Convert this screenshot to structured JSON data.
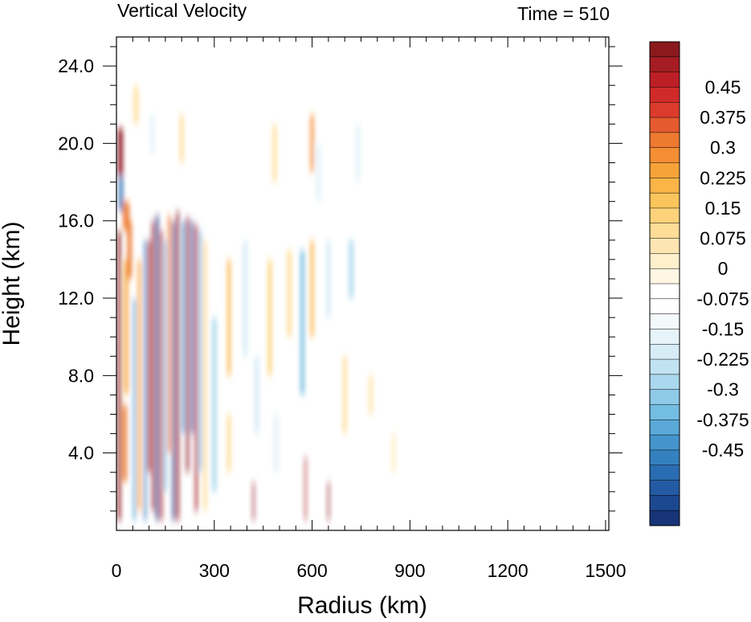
{
  "chart_data": {
    "type": "heatmap",
    "title": "Vertical Velocity",
    "time_label": "Time = 510",
    "xlabel": "Radius (km)",
    "ylabel": "Height (km)",
    "xlim": [
      0,
      1510
    ],
    "ylim": [
      0,
      25.5
    ],
    "x_ticks": [
      0,
      300,
      600,
      900,
      1200,
      1500
    ],
    "x_tick_labels": [
      "0",
      "300",
      "600",
      "900",
      "1200",
      "1500"
    ],
    "y_ticks": [
      4,
      8,
      12,
      16,
      20,
      24
    ],
    "y_tick_labels": [
      "4.0",
      "8.0",
      "12.0",
      "16.0",
      "20.0",
      "24.0"
    ],
    "colorbar": {
      "labels": [
        "0.45",
        "0.375",
        "0.3",
        "0.225",
        "0.15",
        "0.075",
        "0",
        "-0.075",
        "-0.15",
        "-0.225",
        "-0.3",
        "-0.375",
        "-0.45"
      ],
      "colors": [
        "#8b1a1e",
        "#a51c22",
        "#bd1f26",
        "#d02a2a",
        "#dc3b2c",
        "#e55a2e",
        "#ee7a30",
        "#f48e34",
        "#f8a33a",
        "#fab447",
        "#fcc55c",
        "#fdd27a",
        "#fedd98",
        "#fee6b2",
        "#fff0cc",
        "#fff7e4",
        "#ffffff",
        "#ffffff",
        "#f4f9fc",
        "#e6f3f9",
        "#d6ecf6",
        "#c2e3f2",
        "#aad8ee",
        "#8fcbe8",
        "#74bde2",
        "#5ba9d8",
        "#4595cc",
        "#3581bf",
        "#2b6db2",
        "#235aa3",
        "#1c4890",
        "#173478"
      ],
      "min": -0.5,
      "max": 0.5
    },
    "features": [
      {
        "x": 8,
        "y0": 0.5,
        "y1": 15.5,
        "value": 0.55,
        "width": 10
      },
      {
        "x": 25,
        "y0": 2.5,
        "y1": 6.5,
        "value": 0.3,
        "width": 14
      },
      {
        "x": 30,
        "y0": 7,
        "y1": 14,
        "value": 0.25,
        "width": 12
      },
      {
        "x": 40,
        "y0": 13,
        "y1": 16,
        "value": 0.3,
        "width": 14
      },
      {
        "x": 12,
        "y0": 18.3,
        "y1": 20.8,
        "value": 0.55,
        "width": 16
      },
      {
        "x": 14,
        "y0": 16.5,
        "y1": 18.3,
        "value": -0.4,
        "width": 12
      },
      {
        "x": 30,
        "y0": 15.5,
        "y1": 17,
        "value": 0.3,
        "width": 20
      },
      {
        "x": 55,
        "y0": 0.5,
        "y1": 12,
        "value": -0.3,
        "width": 8
      },
      {
        "x": 70,
        "y0": 1,
        "y1": 14,
        "value": 0.25,
        "width": 9
      },
      {
        "x": 88,
        "y0": 0.5,
        "y1": 15,
        "value": -0.35,
        "width": 7
      },
      {
        "x": 100,
        "y0": 3,
        "y1": 15,
        "value": 0.45,
        "width": 8
      },
      {
        "x": 112,
        "y0": 1,
        "y1": 16,
        "value": 0.5,
        "width": 7
      },
      {
        "x": 125,
        "y0": 0.5,
        "y1": 16.3,
        "value": -0.55,
        "width": 8
      },
      {
        "x": 138,
        "y0": 0.5,
        "y1": 15.5,
        "value": 0.45,
        "width": 7
      },
      {
        "x": 150,
        "y0": 2,
        "y1": 15,
        "value": -0.3,
        "width": 6
      },
      {
        "x": 162,
        "y0": 4,
        "y1": 16.3,
        "value": 0.3,
        "width": 8
      },
      {
        "x": 175,
        "y0": 0.5,
        "y1": 16,
        "value": -0.5,
        "width": 7
      },
      {
        "x": 188,
        "y0": 0.5,
        "y1": 16.5,
        "value": 0.55,
        "width": 8
      },
      {
        "x": 205,
        "y0": 5,
        "y1": 16,
        "value": -0.35,
        "width": 7
      },
      {
        "x": 218,
        "y0": 3,
        "y1": 16.2,
        "value": 0.5,
        "width": 8
      },
      {
        "x": 232,
        "y0": 5,
        "y1": 16,
        "value": -0.45,
        "width": 7
      },
      {
        "x": 245,
        "y0": 1,
        "y1": 15.8,
        "value": 0.45,
        "width": 8
      },
      {
        "x": 258,
        "y0": 3,
        "y1": 15.5,
        "value": -0.3,
        "width": 6
      },
      {
        "x": 272,
        "y0": 1,
        "y1": 15,
        "value": 0.15,
        "width": 8
      },
      {
        "x": 200,
        "y0": 19,
        "y1": 21.5,
        "value": 0.12,
        "width": 12
      },
      {
        "x": 110,
        "y0": 19.5,
        "y1": 21.5,
        "value": -0.1,
        "width": 14
      },
      {
        "x": 60,
        "y0": 21,
        "y1": 23,
        "value": 0.1,
        "width": 14
      },
      {
        "x": 300,
        "y0": 2,
        "y1": 11,
        "value": -0.2,
        "width": 14
      },
      {
        "x": 345,
        "y0": 8,
        "y1": 14,
        "value": 0.2,
        "width": 10
      },
      {
        "x": 345,
        "y0": 3,
        "y1": 6,
        "value": 0.1,
        "width": 12
      },
      {
        "x": 395,
        "y0": 9,
        "y1": 15,
        "value": -0.15,
        "width": 14
      },
      {
        "x": 420,
        "y0": 0.5,
        "y1": 2.5,
        "value": 0.5,
        "width": 4
      },
      {
        "x": 430,
        "y0": 5,
        "y1": 9,
        "value": -0.15,
        "width": 14
      },
      {
        "x": 470,
        "y0": 8,
        "y1": 14,
        "value": 0.15,
        "width": 12
      },
      {
        "x": 485,
        "y0": 18,
        "y1": 21,
        "value": 0.12,
        "width": 12
      },
      {
        "x": 490,
        "y0": 3,
        "y1": 6,
        "value": -0.12,
        "width": 16
      },
      {
        "x": 530,
        "y0": 10,
        "y1": 14.5,
        "value": 0.1,
        "width": 14
      },
      {
        "x": 570,
        "y0": 7,
        "y1": 14.5,
        "value": -0.28,
        "width": 12
      },
      {
        "x": 580,
        "y0": 0.5,
        "y1": 3.8,
        "value": 0.45,
        "width": 5
      },
      {
        "x": 600,
        "y0": 10,
        "y1": 15,
        "value": 0.2,
        "width": 10
      },
      {
        "x": 600,
        "y0": 18.5,
        "y1": 21.5,
        "value": 0.28,
        "width": 10
      },
      {
        "x": 620,
        "y0": 17,
        "y1": 20,
        "value": -0.1,
        "width": 16
      },
      {
        "x": 650,
        "y0": 0.5,
        "y1": 2.5,
        "value": 0.5,
        "width": 4
      },
      {
        "x": 650,
        "y0": 11,
        "y1": 15,
        "value": -0.15,
        "width": 14
      },
      {
        "x": 700,
        "y0": 5,
        "y1": 9,
        "value": 0.1,
        "width": 12
      },
      {
        "x": 720,
        "y0": 12,
        "y1": 15,
        "value": -0.2,
        "width": 14
      },
      {
        "x": 740,
        "y0": 18,
        "y1": 21,
        "value": -0.12,
        "width": 16
      },
      {
        "x": 780,
        "y0": 6,
        "y1": 8,
        "value": 0.08,
        "width": 14
      },
      {
        "x": 850,
        "y0": 3,
        "y1": 5,
        "value": 0.06,
        "width": 14
      }
    ]
  }
}
